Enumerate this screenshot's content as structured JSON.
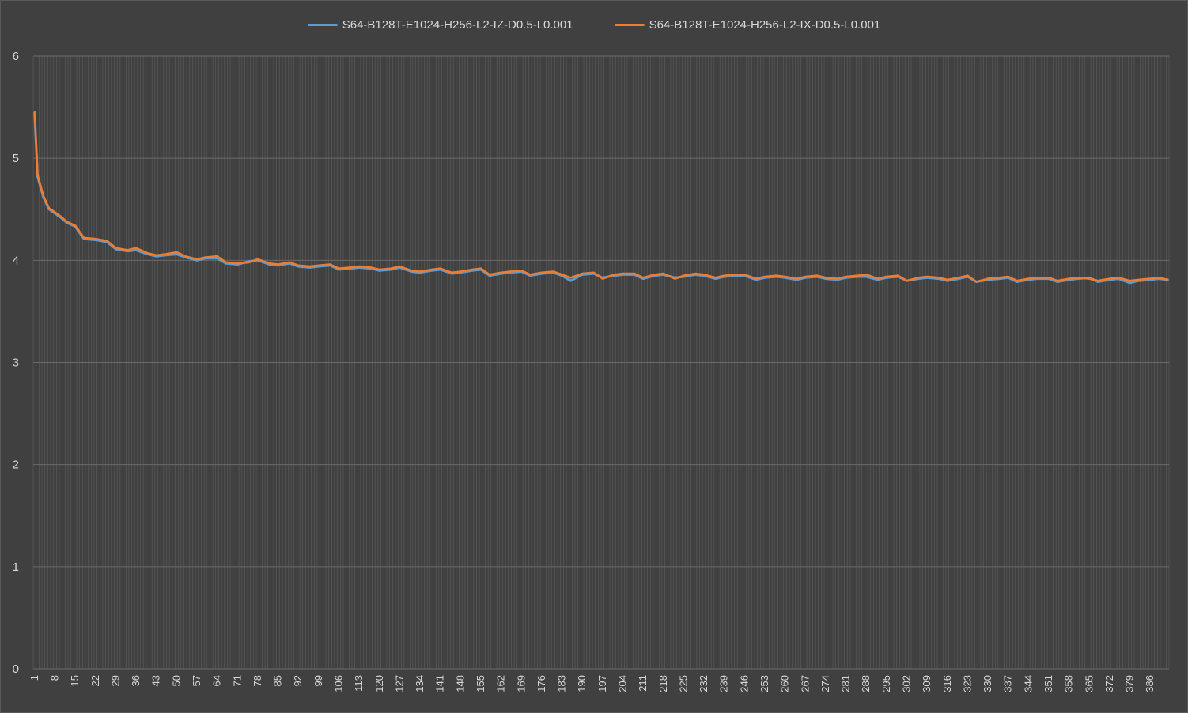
{
  "chart_data": {
    "type": "line",
    "title": "",
    "xlabel": "",
    "ylabel": "",
    "ylim": [
      0,
      6
    ],
    "yticks": [
      "0",
      "1",
      "2",
      "3",
      "4",
      "5",
      "6"
    ],
    "x_range": [
      1,
      392
    ],
    "xtick_step": 7,
    "xticks": [
      "1",
      "8",
      "15",
      "22",
      "29",
      "36",
      "43",
      "50",
      "57",
      "64",
      "71",
      "78",
      "85",
      "92",
      "99",
      "106",
      "113",
      "120",
      "127",
      "134",
      "141",
      "148",
      "155",
      "162",
      "169",
      "176",
      "183",
      "190",
      "197",
      "204",
      "211",
      "218",
      "225",
      "232",
      "239",
      "246",
      "253",
      "260",
      "267",
      "274",
      "281",
      "288",
      "295",
      "302",
      "309",
      "316",
      "323",
      "330",
      "337",
      "344",
      "351",
      "358",
      "365",
      "372",
      "379",
      "386"
    ],
    "grid": "major horizontal and vertical",
    "legend_position": "top",
    "series": [
      {
        "name": "S64-B128T-E1024-H256-L2-IZ-D0.5-L0.001",
        "color": "#5b9bd5",
        "points": [
          [
            1,
            5.44
          ],
          [
            2,
            4.82
          ],
          [
            4,
            4.62
          ],
          [
            6,
            4.5
          ],
          [
            8,
            4.46
          ],
          [
            10,
            4.42
          ],
          [
            12,
            4.37
          ],
          [
            15,
            4.33
          ],
          [
            18,
            4.21
          ],
          [
            22,
            4.2
          ],
          [
            26,
            4.18
          ],
          [
            29,
            4.11
          ],
          [
            33,
            4.09
          ],
          [
            36,
            4.1
          ],
          [
            40,
            4.06
          ],
          [
            43,
            4.04
          ],
          [
            46,
            4.05
          ],
          [
            50,
            4.06
          ],
          [
            53,
            4.03
          ],
          [
            57,
            4.0
          ],
          [
            60,
            4.02
          ],
          [
            64,
            4.02
          ],
          [
            67,
            3.97
          ],
          [
            71,
            3.96
          ],
          [
            75,
            3.99
          ],
          [
            78,
            4.0
          ],
          [
            82,
            3.96
          ],
          [
            85,
            3.95
          ],
          [
            89,
            3.97
          ],
          [
            92,
            3.94
          ],
          [
            96,
            3.93
          ],
          [
            99,
            3.94
          ],
          [
            103,
            3.95
          ],
          [
            106,
            3.91
          ],
          [
            110,
            3.92
          ],
          [
            113,
            3.93
          ],
          [
            117,
            3.92
          ],
          [
            120,
            3.9
          ],
          [
            124,
            3.91
          ],
          [
            127,
            3.93
          ],
          [
            131,
            3.89
          ],
          [
            134,
            3.88
          ],
          [
            138,
            3.9
          ],
          [
            141,
            3.91
          ],
          [
            145,
            3.87
          ],
          [
            148,
            3.88
          ],
          [
            152,
            3.9
          ],
          [
            155,
            3.91
          ],
          [
            158,
            3.85
          ],
          [
            162,
            3.87
          ],
          [
            165,
            3.88
          ],
          [
            169,
            3.89
          ],
          [
            172,
            3.85
          ],
          [
            176,
            3.87
          ],
          [
            180,
            3.88
          ],
          [
            183,
            3.85
          ],
          [
            186,
            3.8
          ],
          [
            190,
            3.86
          ],
          [
            194,
            3.87
          ],
          [
            197,
            3.83
          ],
          [
            201,
            3.85
          ],
          [
            204,
            3.86
          ],
          [
            208,
            3.86
          ],
          [
            211,
            3.82
          ],
          [
            215,
            3.85
          ],
          [
            218,
            3.86
          ],
          [
            222,
            3.83
          ],
          [
            225,
            3.84
          ],
          [
            229,
            3.86
          ],
          [
            232,
            3.85
          ],
          [
            236,
            3.82
          ],
          [
            239,
            3.84
          ],
          [
            243,
            3.85
          ],
          [
            246,
            3.85
          ],
          [
            250,
            3.81
          ],
          [
            253,
            3.83
          ],
          [
            257,
            3.84
          ],
          [
            260,
            3.83
          ],
          [
            264,
            3.81
          ],
          [
            267,
            3.83
          ],
          [
            271,
            3.84
          ],
          [
            274,
            3.82
          ],
          [
            278,
            3.81
          ],
          [
            281,
            3.83
          ],
          [
            285,
            3.84
          ],
          [
            288,
            3.84
          ],
          [
            292,
            3.81
          ],
          [
            295,
            3.83
          ],
          [
            299,
            3.84
          ],
          [
            302,
            3.8
          ],
          [
            306,
            3.82
          ],
          [
            309,
            3.83
          ],
          [
            313,
            3.82
          ],
          [
            316,
            3.8
          ],
          [
            320,
            3.82
          ],
          [
            323,
            3.84
          ],
          [
            326,
            3.79
          ],
          [
            330,
            3.81
          ],
          [
            334,
            3.82
          ],
          [
            337,
            3.83
          ],
          [
            340,
            3.79
          ],
          [
            344,
            3.81
          ],
          [
            347,
            3.82
          ],
          [
            351,
            3.82
          ],
          [
            354,
            3.79
          ],
          [
            358,
            3.81
          ],
          [
            361,
            3.82
          ],
          [
            365,
            3.83
          ],
          [
            368,
            3.79
          ],
          [
            372,
            3.81
          ],
          [
            375,
            3.82
          ],
          [
            379,
            3.78
          ],
          [
            382,
            3.8
          ],
          [
            386,
            3.81
          ],
          [
            389,
            3.82
          ],
          [
            392,
            3.81
          ]
        ]
      },
      {
        "name": "S64-B128T-E1024-H256-L2-IX-D0.5-L0.001",
        "color": "#ed7d31",
        "points": [
          [
            1,
            5.45
          ],
          [
            2,
            4.84
          ],
          [
            4,
            4.63
          ],
          [
            6,
            4.51
          ],
          [
            8,
            4.47
          ],
          [
            10,
            4.43
          ],
          [
            12,
            4.38
          ],
          [
            15,
            4.34
          ],
          [
            18,
            4.22
          ],
          [
            22,
            4.21
          ],
          [
            26,
            4.19
          ],
          [
            29,
            4.12
          ],
          [
            33,
            4.1
          ],
          [
            36,
            4.12
          ],
          [
            40,
            4.07
          ],
          [
            43,
            4.05
          ],
          [
            46,
            4.06
          ],
          [
            50,
            4.08
          ],
          [
            53,
            4.04
          ],
          [
            57,
            4.01
          ],
          [
            60,
            4.03
          ],
          [
            64,
            4.04
          ],
          [
            67,
            3.98
          ],
          [
            71,
            3.97
          ],
          [
            75,
            3.98
          ],
          [
            78,
            4.01
          ],
          [
            82,
            3.97
          ],
          [
            85,
            3.96
          ],
          [
            89,
            3.98
          ],
          [
            92,
            3.95
          ],
          [
            96,
            3.94
          ],
          [
            99,
            3.95
          ],
          [
            103,
            3.96
          ],
          [
            106,
            3.92
          ],
          [
            110,
            3.93
          ],
          [
            113,
            3.94
          ],
          [
            117,
            3.93
          ],
          [
            120,
            3.91
          ],
          [
            124,
            3.92
          ],
          [
            127,
            3.94
          ],
          [
            131,
            3.9
          ],
          [
            134,
            3.89
          ],
          [
            138,
            3.91
          ],
          [
            141,
            3.92
          ],
          [
            145,
            3.88
          ],
          [
            148,
            3.89
          ],
          [
            152,
            3.91
          ],
          [
            155,
            3.92
          ],
          [
            158,
            3.86
          ],
          [
            162,
            3.88
          ],
          [
            165,
            3.89
          ],
          [
            169,
            3.9
          ],
          [
            172,
            3.86
          ],
          [
            176,
            3.88
          ],
          [
            180,
            3.89
          ],
          [
            183,
            3.86
          ],
          [
            186,
            3.83
          ],
          [
            190,
            3.87
          ],
          [
            194,
            3.88
          ],
          [
            197,
            3.82
          ],
          [
            201,
            3.86
          ],
          [
            204,
            3.87
          ],
          [
            208,
            3.87
          ],
          [
            211,
            3.83
          ],
          [
            215,
            3.86
          ],
          [
            218,
            3.87
          ],
          [
            222,
            3.82
          ],
          [
            225,
            3.85
          ],
          [
            229,
            3.87
          ],
          [
            232,
            3.86
          ],
          [
            236,
            3.83
          ],
          [
            239,
            3.85
          ],
          [
            243,
            3.86
          ],
          [
            246,
            3.86
          ],
          [
            250,
            3.82
          ],
          [
            253,
            3.84
          ],
          [
            257,
            3.85
          ],
          [
            260,
            3.84
          ],
          [
            264,
            3.82
          ],
          [
            267,
            3.84
          ],
          [
            271,
            3.85
          ],
          [
            274,
            3.83
          ],
          [
            278,
            3.82
          ],
          [
            281,
            3.84
          ],
          [
            285,
            3.85
          ],
          [
            288,
            3.86
          ],
          [
            292,
            3.82
          ],
          [
            295,
            3.84
          ],
          [
            299,
            3.85
          ],
          [
            302,
            3.8
          ],
          [
            306,
            3.83
          ],
          [
            309,
            3.84
          ],
          [
            313,
            3.83
          ],
          [
            316,
            3.81
          ],
          [
            320,
            3.83
          ],
          [
            323,
            3.85
          ],
          [
            326,
            3.79
          ],
          [
            330,
            3.82
          ],
          [
            334,
            3.83
          ],
          [
            337,
            3.84
          ],
          [
            340,
            3.8
          ],
          [
            344,
            3.82
          ],
          [
            347,
            3.83
          ],
          [
            351,
            3.83
          ],
          [
            354,
            3.8
          ],
          [
            358,
            3.82
          ],
          [
            361,
            3.83
          ],
          [
            365,
            3.82
          ],
          [
            368,
            3.8
          ],
          [
            372,
            3.82
          ],
          [
            375,
            3.83
          ],
          [
            379,
            3.8
          ],
          [
            382,
            3.81
          ],
          [
            386,
            3.82
          ],
          [
            389,
            3.83
          ],
          [
            392,
            3.81
          ]
        ]
      }
    ]
  }
}
